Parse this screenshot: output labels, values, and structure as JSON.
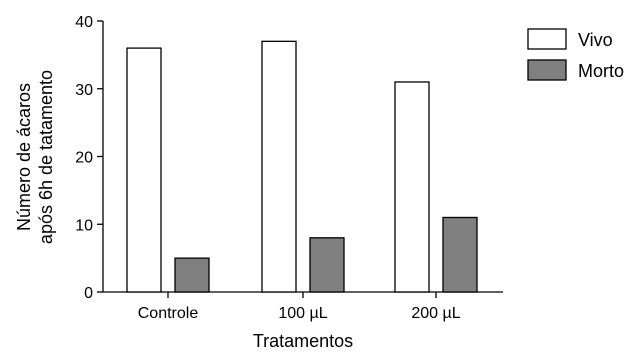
{
  "chart_data": {
    "type": "bar",
    "categories": [
      "Controle",
      "100 µL",
      "200 µL"
    ],
    "series": [
      {
        "name": "Vivo",
        "values": [
          36,
          37,
          31
        ],
        "color": "#ffffff"
      },
      {
        "name": "Morto",
        "values": [
          5,
          8,
          11
        ],
        "color": "#808080"
      }
    ],
    "xlabel": "Tratamentos",
    "ylabel": [
      "Número de ácaros",
      "após 6h de tatamento"
    ],
    "ylim": [
      0,
      40
    ],
    "yticks": [
      0,
      10,
      20,
      30,
      40
    ],
    "grid": false,
    "legend": "top-right"
  }
}
